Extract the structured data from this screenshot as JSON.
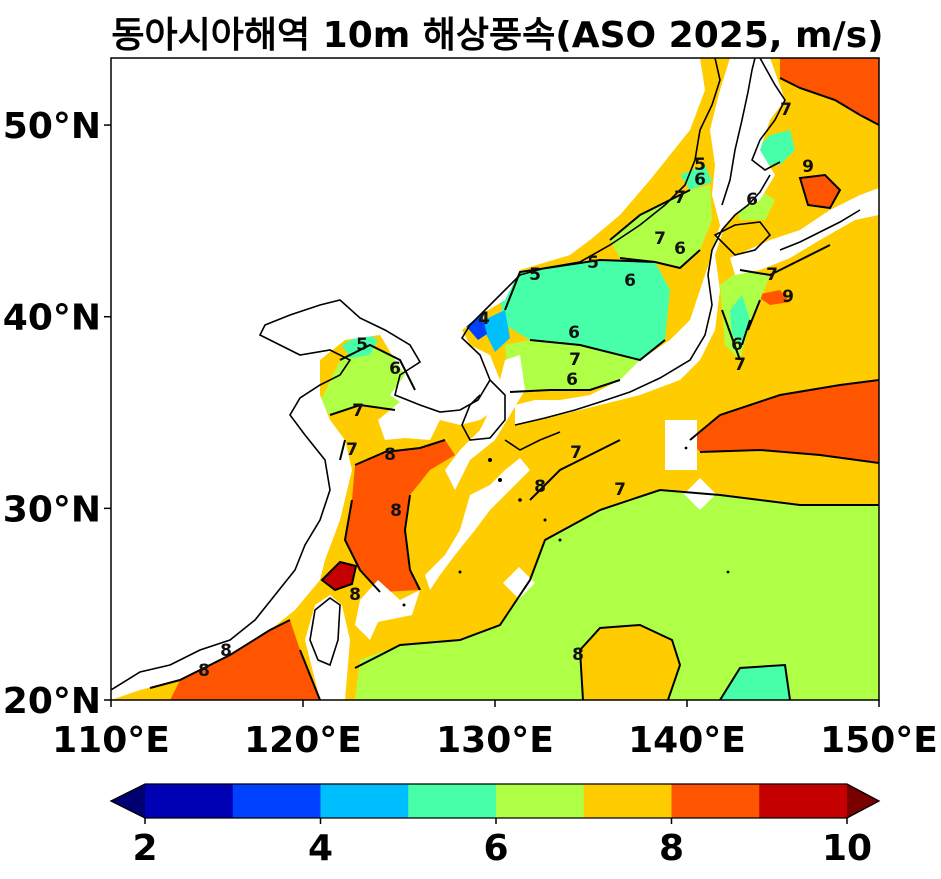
{
  "title": "동아시아해역 10m 해상풍속(ASO 2025, m/s)",
  "map": {
    "region": "East Asia seas",
    "lon_range": [
      110,
      150
    ],
    "lat_range": [
      20,
      53.5
    ],
    "lon_ticks": [
      "110°E",
      "120°E",
      "130°E",
      "140°E",
      "150°E"
    ],
    "lat_ticks": [
      "20°N",
      "30°N",
      "40°N",
      "50°N"
    ],
    "contour_labels": [
      "4",
      "5",
      "5",
      "5",
      "5",
      "6",
      "6",
      "6",
      "6",
      "6",
      "6",
      "6",
      "6",
      "7",
      "7",
      "7",
      "7",
      "7",
      "7",
      "7",
      "7",
      "7",
      "7",
      "8",
      "8",
      "8",
      "8",
      "8",
      "8",
      "8",
      "9",
      "9"
    ]
  },
  "colorbar": {
    "ticks": [
      "2",
      "4",
      "6",
      "8",
      "10"
    ],
    "levels": [
      2,
      3,
      4,
      5,
      6,
      7,
      8,
      9,
      10
    ],
    "colors": [
      "#0000b4",
      "#0040ff",
      "#00bfff",
      "#47ffa8",
      "#b0ff47",
      "#ffcc00",
      "#ff5500",
      "#c40000"
    ],
    "under_color": "#000070",
    "over_color": "#7a0000",
    "extend": "both"
  }
}
